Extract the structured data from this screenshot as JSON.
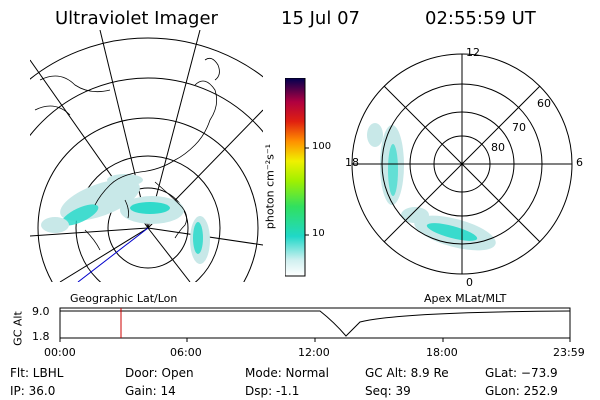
{
  "header": {
    "instrument": "Ultraviolet Imager",
    "date": "15 Jul 07",
    "time": "02:55:59 UT"
  },
  "colorbar": {
    "unit_label": "photon cm⁻²s⁻¹",
    "ticks": [
      "100",
      "10"
    ]
  },
  "left_map": {
    "caption": "Geographic Lat/Lon"
  },
  "right_map": {
    "caption": "Apex MLat/MLT",
    "mlt_labels": [
      "12",
      "18",
      "6",
      "0"
    ],
    "lat_labels": [
      "60",
      "70",
      "80"
    ]
  },
  "altitude_plot": {
    "ylabel": "GC Alt",
    "yticks": [
      "9.0",
      "1.8"
    ],
    "xticks": [
      "00:00",
      "06:00",
      "12:00",
      "18:00",
      "23:59"
    ],
    "marker_time": "02:56"
  },
  "info": {
    "flt": "Flt: LBHL",
    "ip": "IP: 36.0",
    "door": "Door: Open",
    "gain": "Gain: 14",
    "mode": "Mode: Normal",
    "dsp": "Dsp:    -1.1",
    "gc_alt": "GC Alt: 8.9 Re",
    "seq": "Seq: 39",
    "glat": "GLat: −73.9",
    "glon": "GLon: 252.9"
  },
  "colors": {
    "aurora_teal": "#20d8c8",
    "aurora_light": "#c8e8e8",
    "marker": "#cc0000",
    "nadir_line": "#0000cc"
  }
}
